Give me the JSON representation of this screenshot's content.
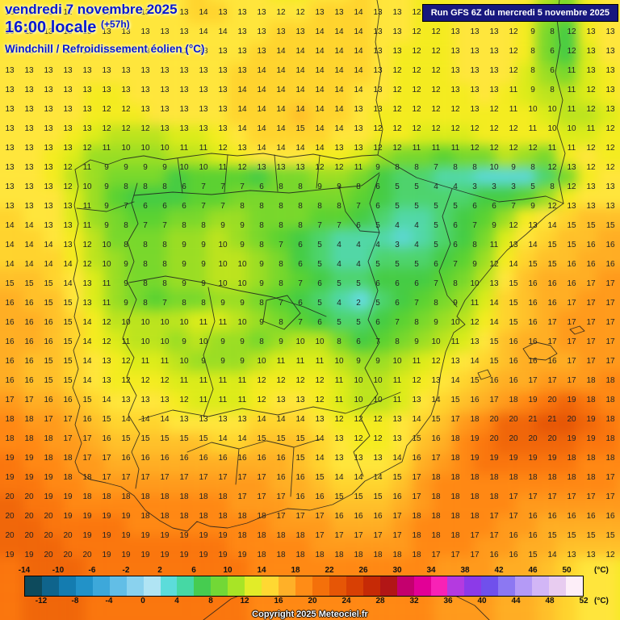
{
  "header": {
    "date_line": "vendredi 7 novembre 2025",
    "time_line": "16:00 locale",
    "time_offset": "(+57h)",
    "product_line": "Windchill / Refroidissement éolien (°C)",
    "run_info": "Run GFS 6Z du mercredi 5 novembre 2025"
  },
  "footer": {
    "copyright": "Copyright 2025 Meteociel.fr"
  },
  "colorbar": {
    "min": -14,
    "step": 2,
    "unit": "(°C)",
    "top_labels": [
      -14,
      -10,
      -6,
      -2,
      2,
      6,
      10,
      14,
      18,
      22,
      26,
      30,
      34,
      38,
      42,
      46,
      50
    ],
    "bottom_labels": [
      -12,
      -8,
      -4,
      0,
      4,
      8,
      12,
      16,
      20,
      24,
      28,
      32,
      36,
      40,
      44,
      48,
      52
    ],
    "segment_colors": [
      "#0d4a5c",
      "#0f648c",
      "#147cb0",
      "#2292c8",
      "#3da8da",
      "#62bee6",
      "#8ad2ee",
      "#b0e4f4",
      "#5cdcda",
      "#46d8a4",
      "#46cc50",
      "#72d836",
      "#a8e426",
      "#e2ec28",
      "#ffd832",
      "#ffb028",
      "#ff8c16",
      "#f4700a",
      "#e65606",
      "#d84004",
      "#c62a06",
      "#b21616",
      "#c4006e",
      "#e20096",
      "#f822b6",
      "#b43ae0",
      "#8c3ae8",
      "#7050ec",
      "#8c78f2",
      "#b49af6",
      "#d2b6f6",
      "#e8ccf0",
      "#fdeef8"
    ]
  },
  "map_grid": {
    "cols": 32,
    "rows": 29,
    "cell_colors": {
      "2": "#64dce0",
      "3": "#5ad8d2",
      "4": "#50d8a8",
      "5": "#4cd46e",
      "6": "#44cc44",
      "7": "#5ad232",
      "8": "#78d82c",
      "9": "#9ade24",
      "10": "#bce41e",
      "11": "#dcec1a",
      "12": "#f4ec20",
      "13": "#ffe63c",
      "14": "#ffd42e",
      "15": "#ffc02a",
      "16": "#ffae24",
      "17": "#ff9a1c",
      "18": "#ff8814",
      "19": "#fa760e",
      "20": "#f0660a",
      "21": "#e65606"
    },
    "values": [
      [
        13,
        13,
        13,
        12,
        12,
        13,
        13,
        13,
        13,
        13,
        14,
        13,
        13,
        13,
        12,
        12,
        13,
        13,
        14,
        13,
        13,
        12,
        12,
        12,
        13,
        13,
        13,
        10,
        8,
        12,
        13,
        13
      ],
      [
        13,
        13,
        13,
        13,
        13,
        13,
        13,
        13,
        13,
        13,
        14,
        14,
        13,
        13,
        13,
        13,
        14,
        14,
        14,
        13,
        13,
        12,
        12,
        13,
        13,
        13,
        12,
        9,
        8,
        12,
        13,
        13
      ],
      [
        12,
        13,
        13,
        13,
        13,
        13,
        13,
        13,
        13,
        13,
        13,
        13,
        13,
        13,
        14,
        14,
        14,
        14,
        14,
        13,
        13,
        12,
        12,
        13,
        13,
        13,
        12,
        8,
        6,
        12,
        13,
        13
      ],
      [
        13,
        13,
        13,
        13,
        13,
        13,
        13,
        13,
        13,
        13,
        13,
        13,
        13,
        14,
        14,
        14,
        14,
        14,
        14,
        13,
        12,
        12,
        12,
        13,
        13,
        13,
        12,
        8,
        6,
        11,
        13,
        13
      ],
      [
        13,
        13,
        13,
        13,
        13,
        13,
        13,
        13,
        13,
        13,
        13,
        13,
        14,
        14,
        14,
        14,
        14,
        14,
        14,
        13,
        12,
        12,
        12,
        13,
        13,
        13,
        11,
        9,
        8,
        11,
        12,
        13
      ],
      [
        13,
        13,
        13,
        13,
        13,
        12,
        12,
        13,
        13,
        13,
        13,
        13,
        14,
        14,
        14,
        14,
        14,
        14,
        13,
        13,
        12,
        12,
        12,
        12,
        13,
        12,
        11,
        10,
        10,
        11,
        12,
        13
      ],
      [
        13,
        13,
        13,
        13,
        13,
        12,
        12,
        12,
        13,
        13,
        13,
        13,
        14,
        14,
        14,
        15,
        14,
        14,
        13,
        12,
        12,
        12,
        12,
        12,
        12,
        12,
        12,
        11,
        10,
        10,
        11,
        12
      ],
      [
        13,
        13,
        13,
        13,
        12,
        11,
        10,
        10,
        10,
        11,
        11,
        12,
        13,
        14,
        14,
        14,
        14,
        13,
        13,
        12,
        12,
        11,
        11,
        11,
        12,
        12,
        12,
        12,
        11,
        11,
        12,
        12
      ],
      [
        13,
        13,
        13,
        12,
        11,
        9,
        9,
        9,
        9,
        10,
        10,
        11,
        12,
        13,
        13,
        13,
        12,
        12,
        11,
        9,
        8,
        8,
        7,
        8,
        8,
        10,
        9,
        8,
        12,
        13,
        12,
        12
      ],
      [
        13,
        13,
        13,
        12,
        10,
        9,
        8,
        8,
        8,
        6,
        7,
        7,
        7,
        6,
        8,
        8,
        9,
        9,
        8,
        6,
        5,
        5,
        4,
        4,
        3,
        3,
        3,
        5,
        8,
        12,
        13,
        13
      ],
      [
        13,
        13,
        13,
        13,
        11,
        9,
        7,
        6,
        6,
        6,
        7,
        7,
        8,
        8,
        8,
        8,
        8,
        8,
        7,
        6,
        5,
        5,
        5,
        5,
        6,
        6,
        7,
        9,
        12,
        13,
        13,
        13
      ],
      [
        14,
        14,
        13,
        13,
        11,
        9,
        8,
        7,
        7,
        8,
        8,
        9,
        9,
        8,
        8,
        8,
        7,
        7,
        6,
        5,
        4,
        4,
        5,
        6,
        7,
        9,
        12,
        13,
        14,
        15,
        15,
        15
      ],
      [
        14,
        14,
        14,
        13,
        12,
        10,
        8,
        8,
        8,
        9,
        9,
        10,
        9,
        8,
        7,
        6,
        5,
        4,
        4,
        4,
        3,
        4,
        5,
        6,
        8,
        11,
        13,
        14,
        15,
        15,
        16,
        16
      ],
      [
        14,
        14,
        14,
        14,
        12,
        10,
        9,
        8,
        8,
        9,
        9,
        10,
        10,
        9,
        8,
        6,
        5,
        4,
        4,
        5,
        5,
        5,
        6,
        7,
        9,
        12,
        14,
        15,
        15,
        16,
        16,
        16
      ],
      [
        15,
        15,
        15,
        14,
        13,
        11,
        9,
        8,
        8,
        9,
        9,
        10,
        10,
        9,
        8,
        7,
        6,
        5,
        5,
        6,
        6,
        6,
        7,
        8,
        10,
        13,
        15,
        16,
        16,
        16,
        17,
        17
      ],
      [
        16,
        16,
        15,
        15,
        13,
        11,
        9,
        8,
        7,
        8,
        8,
        9,
        9,
        8,
        7,
        6,
        5,
        4,
        2,
        5,
        6,
        7,
        8,
        9,
        11,
        14,
        15,
        16,
        16,
        17,
        17,
        17
      ],
      [
        16,
        16,
        16,
        15,
        14,
        12,
        10,
        10,
        10,
        10,
        11,
        11,
        10,
        9,
        8,
        7,
        6,
        5,
        5,
        6,
        7,
        8,
        9,
        10,
        12,
        14,
        15,
        16,
        17,
        17,
        17,
        17
      ],
      [
        16,
        16,
        16,
        15,
        14,
        12,
        11,
        10,
        10,
        9,
        10,
        9,
        9,
        8,
        9,
        10,
        10,
        8,
        6,
        7,
        8,
        9,
        10,
        11,
        13,
        15,
        16,
        16,
        17,
        17,
        17,
        17
      ],
      [
        16,
        16,
        15,
        15,
        14,
        13,
        12,
        11,
        11,
        10,
        9,
        9,
        9,
        10,
        11,
        11,
        11,
        10,
        9,
        9,
        10,
        11,
        12,
        13,
        14,
        15,
        16,
        16,
        16,
        17,
        17,
        17
      ],
      [
        16,
        16,
        15,
        15,
        14,
        13,
        12,
        12,
        12,
        11,
        11,
        11,
        11,
        12,
        12,
        12,
        12,
        11,
        10,
        10,
        11,
        12,
        13,
        14,
        15,
        16,
        16,
        17,
        17,
        17,
        18,
        18
      ],
      [
        17,
        17,
        16,
        16,
        15,
        14,
        13,
        13,
        13,
        12,
        11,
        11,
        11,
        12,
        13,
        13,
        12,
        11,
        10,
        10,
        11,
        13,
        14,
        15,
        16,
        17,
        18,
        19,
        20,
        19,
        18,
        18
      ],
      [
        18,
        18,
        17,
        17,
        16,
        15,
        14,
        14,
        14,
        13,
        13,
        13,
        13,
        14,
        14,
        14,
        13,
        12,
        12,
        12,
        13,
        14,
        15,
        17,
        18,
        20,
        20,
        21,
        21,
        20,
        19,
        18
      ],
      [
        18,
        18,
        18,
        17,
        17,
        16,
        15,
        15,
        15,
        15,
        15,
        14,
        14,
        15,
        15,
        15,
        14,
        13,
        12,
        12,
        13,
        15,
        16,
        18,
        19,
        20,
        20,
        20,
        20,
        19,
        19,
        18
      ],
      [
        19,
        19,
        18,
        18,
        17,
        17,
        16,
        16,
        16,
        16,
        16,
        16,
        16,
        16,
        16,
        15,
        14,
        13,
        13,
        13,
        14,
        16,
        17,
        18,
        19,
        19,
        19,
        19,
        19,
        18,
        18,
        18
      ],
      [
        19,
        19,
        19,
        18,
        18,
        17,
        17,
        17,
        17,
        17,
        17,
        17,
        17,
        17,
        16,
        16,
        15,
        14,
        14,
        14,
        15,
        17,
        18,
        18,
        18,
        18,
        18,
        18,
        18,
        18,
        18,
        17
      ],
      [
        20,
        20,
        19,
        19,
        18,
        18,
        18,
        18,
        18,
        18,
        18,
        18,
        17,
        17,
        17,
        16,
        16,
        15,
        15,
        15,
        16,
        17,
        18,
        18,
        18,
        18,
        17,
        17,
        17,
        17,
        17,
        17
      ],
      [
        20,
        20,
        20,
        19,
        19,
        19,
        19,
        18,
        18,
        18,
        18,
        18,
        18,
        18,
        17,
        17,
        17,
        16,
        16,
        16,
        17,
        18,
        18,
        18,
        18,
        17,
        17,
        16,
        16,
        16,
        16,
        16
      ],
      [
        20,
        20,
        20,
        20,
        19,
        19,
        19,
        19,
        19,
        19,
        19,
        19,
        18,
        18,
        18,
        18,
        17,
        17,
        17,
        17,
        17,
        18,
        18,
        18,
        17,
        17,
        16,
        16,
        15,
        15,
        15,
        15
      ],
      [
        19,
        19,
        20,
        20,
        20,
        19,
        19,
        19,
        19,
        19,
        19,
        19,
        19,
        18,
        18,
        18,
        18,
        18,
        18,
        18,
        18,
        18,
        17,
        17,
        17,
        16,
        16,
        15,
        14,
        13,
        13,
        12
      ]
    ]
  }
}
